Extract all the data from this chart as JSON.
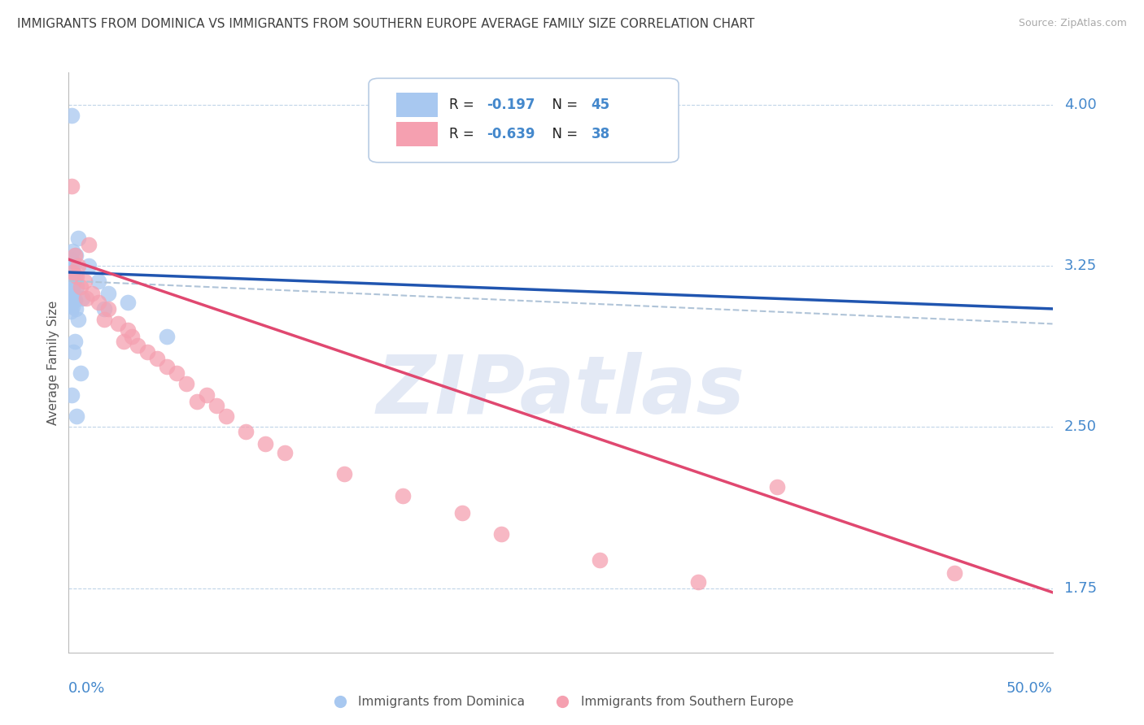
{
  "title": "IMMIGRANTS FROM DOMINICA VS IMMIGRANTS FROM SOUTHERN EUROPE AVERAGE FAMILY SIZE CORRELATION CHART",
  "source": "Source: ZipAtlas.com",
  "ylabel": "Average Family Size",
  "xmin": 0.0,
  "xmax": 50.0,
  "ymin": 1.45,
  "ymax": 4.15,
  "yticks": [
    1.75,
    2.5,
    3.25,
    4.0
  ],
  "legend1_label_black": "R = ",
  "legend1_label_blue": "-0.197",
  "legend1_label_black2": "  N = ",
  "legend1_label_blue2": "45",
  "legend2_label_black": "R = ",
  "legend2_label_blue": "-0.639",
  "legend2_label_black2": "  N = ",
  "legend2_label_blue2": "38",
  "legend_series1": "Immigrants from Dominica",
  "legend_series2": "Immigrants from Southern Europe",
  "blue_color": "#a8c8f0",
  "pink_color": "#f5a0b0",
  "blue_line_color": "#2055b0",
  "pink_line_color": "#e04870",
  "dashed_line_color": "#b0c4d8",
  "title_color": "#404040",
  "axis_label_color": "#4488cc",
  "watermark": "ZIPatlas",
  "watermark_color": "#ccd8ee",
  "blue_scatter": [
    [
      0.15,
      3.95
    ],
    [
      0.5,
      3.38
    ],
    [
      0.2,
      3.32
    ],
    [
      0.35,
      3.3
    ],
    [
      0.1,
      3.28
    ],
    [
      0.2,
      3.27
    ],
    [
      0.25,
      3.25
    ],
    [
      0.15,
      3.23
    ],
    [
      0.1,
      3.22
    ],
    [
      0.18,
      3.2
    ],
    [
      0.12,
      3.19
    ],
    [
      0.22,
      3.18
    ],
    [
      0.08,
      3.17
    ],
    [
      0.15,
      3.16
    ],
    [
      0.1,
      3.15
    ],
    [
      0.2,
      3.14
    ],
    [
      0.12,
      3.13
    ],
    [
      0.18,
      3.12
    ],
    [
      0.08,
      3.11
    ],
    [
      0.25,
      3.1
    ],
    [
      0.3,
      3.09
    ],
    [
      0.15,
      3.08
    ],
    [
      0.1,
      3.07
    ],
    [
      0.2,
      3.06
    ],
    [
      0.35,
      3.05
    ],
    [
      0.12,
      3.04
    ],
    [
      1.0,
      3.25
    ],
    [
      1.5,
      3.18
    ],
    [
      2.0,
      3.12
    ],
    [
      0.6,
      2.75
    ],
    [
      0.4,
      2.55
    ],
    [
      0.3,
      2.9
    ],
    [
      0.5,
      3.0
    ],
    [
      3.0,
      3.08
    ],
    [
      5.0,
      2.92
    ],
    [
      0.25,
      2.85
    ],
    [
      0.15,
      2.65
    ],
    [
      0.4,
      3.15
    ],
    [
      0.3,
      3.2
    ],
    [
      0.2,
      3.22
    ],
    [
      0.15,
      3.24
    ],
    [
      0.1,
      3.26
    ],
    [
      0.08,
      3.28
    ],
    [
      1.8,
      3.05
    ],
    [
      0.7,
      3.1
    ]
  ],
  "pink_scatter": [
    [
      0.3,
      3.3
    ],
    [
      0.5,
      3.25
    ],
    [
      0.2,
      3.22
    ],
    [
      0.4,
      3.2
    ],
    [
      0.8,
      3.18
    ],
    [
      0.6,
      3.15
    ],
    [
      1.2,
      3.12
    ],
    [
      0.9,
      3.1
    ],
    [
      1.5,
      3.08
    ],
    [
      2.0,
      3.05
    ],
    [
      1.8,
      3.0
    ],
    [
      2.5,
      2.98
    ],
    [
      3.0,
      2.95
    ],
    [
      2.8,
      2.9
    ],
    [
      3.5,
      2.88
    ],
    [
      4.0,
      2.85
    ],
    [
      4.5,
      2.82
    ],
    [
      5.0,
      2.78
    ],
    [
      5.5,
      2.75
    ],
    [
      6.0,
      2.7
    ],
    [
      7.0,
      2.65
    ],
    [
      7.5,
      2.6
    ],
    [
      8.0,
      2.55
    ],
    [
      9.0,
      2.48
    ],
    [
      10.0,
      2.42
    ],
    [
      11.0,
      2.38
    ],
    [
      0.15,
      3.62
    ],
    [
      1.0,
      3.35
    ],
    [
      3.2,
      2.92
    ],
    [
      6.5,
      2.62
    ],
    [
      14.0,
      2.28
    ],
    [
      20.0,
      2.1
    ],
    [
      22.0,
      2.0
    ],
    [
      27.0,
      1.88
    ],
    [
      36.0,
      2.22
    ],
    [
      45.0,
      1.82
    ],
    [
      32.0,
      1.78
    ],
    [
      17.0,
      2.18
    ]
  ]
}
